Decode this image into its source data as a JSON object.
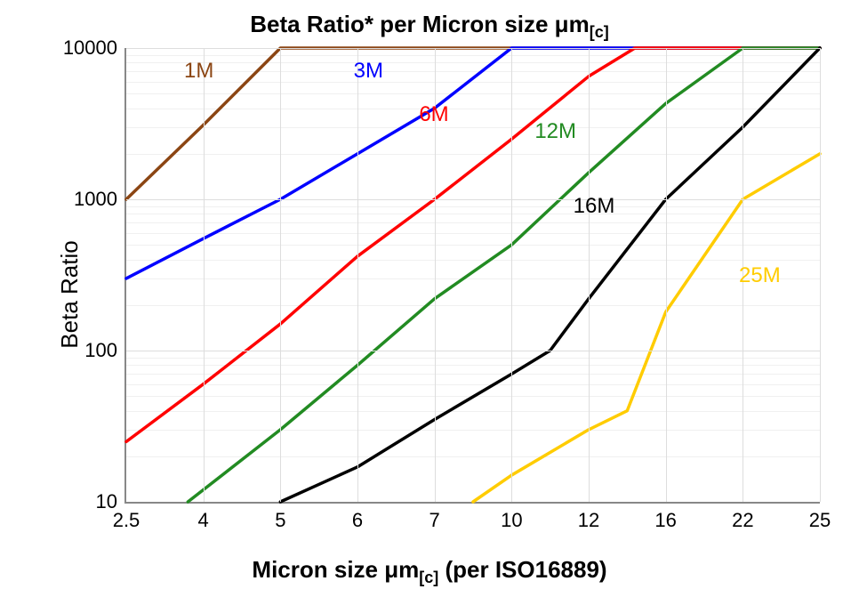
{
  "chart": {
    "type": "line",
    "title_html": "Beta Ratio* per Micron size &mu;m<span class='sub'>[c]</span>",
    "xlabel_html": "Micron size &mu;m<span class='sub'>[c]</span> (per ISO16889)",
    "ylabel": "Beta Ratio",
    "title_fontsize": 26,
    "label_fontsize": 26,
    "tick_fontsize": 22,
    "series_label_fontsize": 24,
    "background_color": "#ffffff",
    "grid_color": "#dddddd",
    "axis_color": "#888888",
    "line_width": 3.5,
    "x_categories": [
      "2.5",
      "4",
      "5",
      "6",
      "7",
      "10",
      "12",
      "16",
      "22",
      "25"
    ],
    "y_scale": "log",
    "y_ticks": [
      10,
      100,
      1000,
      10000
    ],
    "y_tick_labels": [
      "10",
      "100",
      "1000",
      "10000"
    ],
    "ylim": [
      10,
      10000
    ],
    "series": [
      {
        "name": "1M",
        "label": "1M",
        "color": "#8b4513",
        "label_color": "#8b4513",
        "label_xi": 0.75,
        "label_y": 7000,
        "data": [
          {
            "xi": 0,
            "y": 1000
          },
          {
            "xi": 1,
            "y": 3100
          },
          {
            "xi": 2,
            "y": 10000
          },
          {
            "xi": 9,
            "y": 10000
          }
        ]
      },
      {
        "name": "3M",
        "label": "3M",
        "color": "#0000ff",
        "label_color": "#0000ff",
        "label_xi": 2.95,
        "label_y": 7000,
        "data": [
          {
            "xi": 0,
            "y": 300
          },
          {
            "xi": 1,
            "y": 550
          },
          {
            "xi": 2,
            "y": 1000
          },
          {
            "xi": 3,
            "y": 2000
          },
          {
            "xi": 4,
            "y": 4000
          },
          {
            "xi": 5,
            "y": 10000
          },
          {
            "xi": 9,
            "y": 10000
          }
        ]
      },
      {
        "name": "6M",
        "label": "6M",
        "color": "#ff0000",
        "label_color": "#ff0000",
        "label_xi": 3.8,
        "label_y": 3600,
        "data": [
          {
            "xi": 0,
            "y": 25
          },
          {
            "xi": 1,
            "y": 60
          },
          {
            "xi": 2,
            "y": 150
          },
          {
            "xi": 3,
            "y": 420
          },
          {
            "xi": 4,
            "y": 1000
          },
          {
            "xi": 5,
            "y": 2500
          },
          {
            "xi": 6,
            "y": 6500
          },
          {
            "xi": 6.6,
            "y": 10000
          },
          {
            "xi": 9,
            "y": 10000
          }
        ]
      },
      {
        "name": "12M",
        "label": "12M",
        "color": "#228b22",
        "label_color": "#228b22",
        "label_xi": 5.3,
        "label_y": 2800,
        "data": [
          {
            "xi": 0.8,
            "y": 10
          },
          {
            "xi": 1,
            "y": 12
          },
          {
            "xi": 2,
            "y": 30
          },
          {
            "xi": 3,
            "y": 80
          },
          {
            "xi": 4,
            "y": 220
          },
          {
            "xi": 5,
            "y": 500
          },
          {
            "xi": 6,
            "y": 1500
          },
          {
            "xi": 7,
            "y": 4300
          },
          {
            "xi": 8,
            "y": 10000
          },
          {
            "xi": 9,
            "y": 10000
          }
        ]
      },
      {
        "name": "16M",
        "label": "16M",
        "color": "#000000",
        "label_color": "#000000",
        "label_xi": 5.8,
        "label_y": 900,
        "data": [
          {
            "xi": 2,
            "y": 10
          },
          {
            "xi": 3,
            "y": 17
          },
          {
            "xi": 4,
            "y": 35
          },
          {
            "xi": 5,
            "y": 70
          },
          {
            "xi": 5.5,
            "y": 100
          },
          {
            "xi": 6,
            "y": 220
          },
          {
            "xi": 7,
            "y": 1000
          },
          {
            "xi": 8,
            "y": 3000
          },
          {
            "xi": 9,
            "y": 10000
          }
        ]
      },
      {
        "name": "25M",
        "label": "25M",
        "color": "#ffcc00",
        "label_color": "#ffcc00",
        "label_xi": 7.95,
        "label_y": 310,
        "data": [
          {
            "xi": 4.5,
            "y": 10
          },
          {
            "xi": 5,
            "y": 15
          },
          {
            "xi": 6,
            "y": 30
          },
          {
            "xi": 6.5,
            "y": 40
          },
          {
            "xi": 7,
            "y": 180
          },
          {
            "xi": 8,
            "y": 1000
          },
          {
            "xi": 9,
            "y": 2000
          }
        ]
      }
    ]
  }
}
